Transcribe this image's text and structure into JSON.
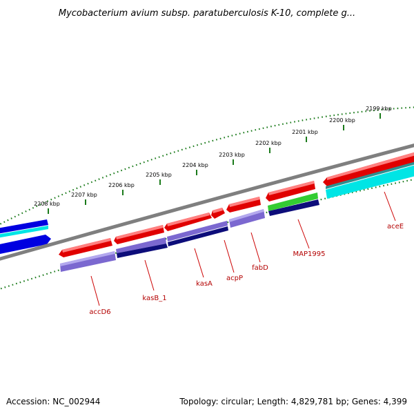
{
  "header": {
    "title": "Mycobacterium avium subsp. paratuberculosis K-10, complete g..."
  },
  "footer": {
    "accession": "Accession: NC_002944",
    "summary": "Topology: circular; Length: 4,829,781 bp; Genes: 4,399"
  },
  "colors": {
    "backbone": "#7f7f7f",
    "forward_cds": "#e00000",
    "forward_cds_light": "#ff8080",
    "reverse_cds": "#7b68d0",
    "reverse_cds_dark": "#0d0d7a",
    "cyan_feature": "#00e5e5",
    "green_feature": "#33cc33",
    "blue_feature": "#0000e0",
    "tick_color": "#1a7a1a",
    "label_line": "#cc0000",
    "label_text": "#b30000"
  },
  "ticks": {
    "outer_labels": [
      "2199 kbp",
      "2200 kbp",
      "2201 kbp",
      "2202 kbp",
      "2203 kbp",
      "2204 kbp",
      "2205 kbp",
      "2206 kbp",
      "2207 kbp",
      "2208 kbp"
    ],
    "outer_positions_kbp": [
      2199,
      2200,
      2201,
      2202,
      2203,
      2204,
      2205,
      2206,
      2207,
      2208
    ]
  },
  "genes": [
    {
      "name": "aceE",
      "strand": "reverse",
      "color_key": "cyan_feature"
    },
    {
      "name": "MAP1995",
      "strand": "reverse",
      "color_key": "reverse_cds_dark"
    },
    {
      "name": "fabD",
      "strand": "reverse",
      "color_key": "reverse_cds"
    },
    {
      "name": "acpP",
      "strand": "forward",
      "color_key": "forward_cds"
    },
    {
      "name": "kasA",
      "strand": "forward",
      "color_key": "forward_cds"
    },
    {
      "name": "kasB_1",
      "strand": "reverse",
      "color_key": "reverse_cds_dark"
    },
    {
      "name": "accD6",
      "strand": "reverse",
      "color_key": "reverse_cds"
    }
  ]
}
